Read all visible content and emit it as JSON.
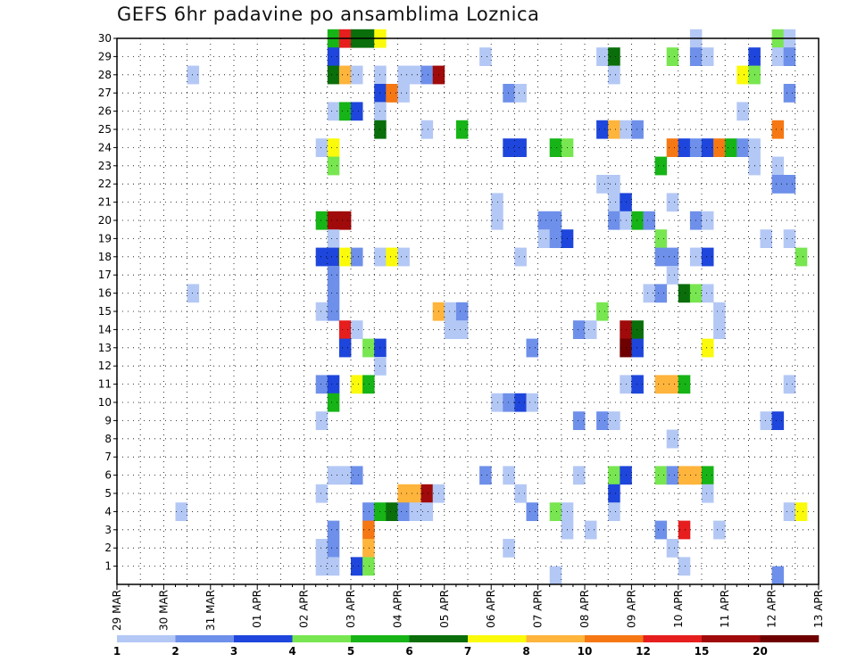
{
  "title": "GEFS 6hr padavine po ansamblima Loznica",
  "chart_data": {
    "type": "heatmap",
    "title": "GEFS 6hr padavine po ansamblima Loznica",
    "x_ticks": [
      "29 MAR",
      "30 MAR",
      "31 MAR",
      "01 APR",
      "02 APR",
      "03 APR",
      "04 APR",
      "05 APR",
      "06 APR",
      "07 APR",
      "08 APR",
      "09 APR",
      "10 APR",
      "11 APR",
      "12 APR",
      "13 APR"
    ],
    "y_ticks": [
      1,
      2,
      3,
      4,
      5,
      6,
      7,
      8,
      9,
      10,
      11,
      12,
      13,
      14,
      15,
      16,
      17,
      18,
      19,
      20,
      21,
      22,
      23,
      24,
      25,
      26,
      27,
      28,
      29,
      30
    ],
    "xlim_days": [
      0,
      15
    ],
    "ylim": [
      0,
      30
    ],
    "grid": true,
    "colorbar": {
      "ticks": [
        "1",
        "2",
        "3",
        "4",
        "5",
        "6",
        "7",
        "8",
        "10",
        "12",
        "15",
        "20"
      ],
      "colors": [
        "#b4c8f5",
        "#6e90ea",
        "#1e46dc",
        "#78e650",
        "#16b416",
        "#0a6e0a",
        "#fafa0a",
        "#ffb43c",
        "#f57814",
        "#e61e1e",
        "#a00a0a",
        "#6e0000"
      ]
    },
    "cells_note": "each cell: [day offset from 29 MAR 00Z, ensemble member, colour class index into colorbar.colors]",
    "cells": [
      [
        4.5,
        30,
        4
      ],
      [
        4.75,
        30,
        9
      ],
      [
        5.0,
        30,
        5
      ],
      [
        5.25,
        30,
        5
      ],
      [
        5.5,
        30,
        6
      ],
      [
        12.25,
        30,
        0
      ],
      [
        14.0,
        30,
        3
      ],
      [
        14.25,
        30,
        0
      ],
      [
        4.5,
        29,
        2
      ],
      [
        7.75,
        29,
        0
      ],
      [
        10.25,
        29,
        0
      ],
      [
        10.5,
        29,
        5
      ],
      [
        11.75,
        29,
        3
      ],
      [
        12.25,
        29,
        1
      ],
      [
        12.5,
        29,
        0
      ],
      [
        13.5,
        29,
        2
      ],
      [
        14.0,
        29,
        0
      ],
      [
        14.25,
        29,
        1
      ],
      [
        1.5,
        28,
        0
      ],
      [
        4.5,
        28,
        5
      ],
      [
        4.75,
        28,
        7
      ],
      [
        5.0,
        28,
        0
      ],
      [
        5.5,
        28,
        0
      ],
      [
        6.0,
        28,
        0
      ],
      [
        6.25,
        28,
        0
      ],
      [
        6.5,
        28,
        1
      ],
      [
        6.75,
        28,
        10
      ],
      [
        10.5,
        28,
        0
      ],
      [
        13.25,
        28,
        6
      ],
      [
        13.5,
        28,
        3
      ],
      [
        5.5,
        27,
        2
      ],
      [
        5.75,
        27,
        8
      ],
      [
        6.0,
        27,
        0
      ],
      [
        8.25,
        27,
        1
      ],
      [
        8.5,
        27,
        0
      ],
      [
        14.25,
        27,
        1
      ],
      [
        4.5,
        26,
        0
      ],
      [
        4.75,
        26,
        4
      ],
      [
        5.0,
        26,
        2
      ],
      [
        5.5,
        26,
        0
      ],
      [
        13.25,
        26,
        0
      ],
      [
        5.5,
        25,
        5
      ],
      [
        6.5,
        25,
        0
      ],
      [
        7.25,
        25,
        4
      ],
      [
        10.25,
        25,
        2
      ],
      [
        10.5,
        25,
        7
      ],
      [
        10.75,
        25,
        0
      ],
      [
        11.0,
        25,
        1
      ],
      [
        14.0,
        25,
        8
      ],
      [
        4.25,
        24,
        0
      ],
      [
        4.5,
        24,
        6
      ],
      [
        8.25,
        24,
        2
      ],
      [
        8.5,
        24,
        2
      ],
      [
        9.25,
        24,
        4
      ],
      [
        9.5,
        24,
        3
      ],
      [
        11.75,
        24,
        8
      ],
      [
        12.0,
        24,
        2
      ],
      [
        12.25,
        24,
        1
      ],
      [
        12.5,
        24,
        2
      ],
      [
        12.75,
        24,
        8
      ],
      [
        13.0,
        24,
        4
      ],
      [
        13.25,
        24,
        1
      ],
      [
        13.5,
        24,
        0
      ],
      [
        4.5,
        23,
        3
      ],
      [
        11.5,
        23,
        4
      ],
      [
        13.5,
        23,
        0
      ],
      [
        14.0,
        23,
        0
      ],
      [
        10.25,
        22,
        0
      ],
      [
        10.5,
        22,
        0
      ],
      [
        14.0,
        22,
        1
      ],
      [
        14.25,
        22,
        1
      ],
      [
        8.0,
        21,
        0
      ],
      [
        10.5,
        21,
        0
      ],
      [
        10.75,
        21,
        2
      ],
      [
        11.75,
        21,
        0
      ],
      [
        4.25,
        20,
        4
      ],
      [
        4.5,
        20,
        10
      ],
      [
        4.75,
        20,
        10
      ],
      [
        8.0,
        20,
        0
      ],
      [
        9.0,
        20,
        1
      ],
      [
        9.25,
        20,
        1
      ],
      [
        10.5,
        20,
        1
      ],
      [
        10.75,
        20,
        0
      ],
      [
        11.0,
        20,
        4
      ],
      [
        11.25,
        20,
        1
      ],
      [
        12.25,
        20,
        1
      ],
      [
        12.5,
        20,
        0
      ],
      [
        4.5,
        19,
        0
      ],
      [
        9.0,
        19,
        0
      ],
      [
        9.25,
        19,
        1
      ],
      [
        9.5,
        19,
        2
      ],
      [
        11.5,
        19,
        3
      ],
      [
        13.75,
        19,
        0
      ],
      [
        14.25,
        19,
        0
      ],
      [
        4.25,
        18,
        2
      ],
      [
        4.5,
        18,
        2
      ],
      [
        4.75,
        18,
        6
      ],
      [
        5.0,
        18,
        1
      ],
      [
        5.5,
        18,
        0
      ],
      [
        5.75,
        18,
        6
      ],
      [
        6.0,
        18,
        0
      ],
      [
        8.5,
        18,
        0
      ],
      [
        11.5,
        18,
        1
      ],
      [
        11.75,
        18,
        1
      ],
      [
        12.25,
        18,
        0
      ],
      [
        12.5,
        18,
        2
      ],
      [
        14.5,
        18,
        3
      ],
      [
        4.5,
        17,
        1
      ],
      [
        11.75,
        17,
        0
      ],
      [
        1.5,
        16,
        0
      ],
      [
        4.5,
        16,
        1
      ],
      [
        11.25,
        16,
        0
      ],
      [
        11.5,
        16,
        1
      ],
      [
        12.0,
        16,
        5
      ],
      [
        12.25,
        16,
        3
      ],
      [
        12.5,
        16,
        0
      ],
      [
        4.25,
        15,
        0
      ],
      [
        4.5,
        15,
        1
      ],
      [
        6.75,
        15,
        7
      ],
      [
        7.0,
        15,
        0
      ],
      [
        7.25,
        15,
        1
      ],
      [
        10.25,
        15,
        3
      ],
      [
        12.75,
        15,
        0
      ],
      [
        4.75,
        14,
        9
      ],
      [
        5.0,
        14,
        0
      ],
      [
        7.0,
        14,
        0
      ],
      [
        7.25,
        14,
        0
      ],
      [
        9.75,
        14,
        1
      ],
      [
        10.0,
        14,
        0
      ],
      [
        10.75,
        14,
        10
      ],
      [
        11.0,
        14,
        5
      ],
      [
        12.75,
        14,
        0
      ],
      [
        4.75,
        13,
        2
      ],
      [
        5.25,
        13,
        3
      ],
      [
        5.5,
        13,
        2
      ],
      [
        8.75,
        13,
        1
      ],
      [
        10.75,
        13,
        11
      ],
      [
        11.0,
        13,
        2
      ],
      [
        12.5,
        13,
        6
      ],
      [
        5.5,
        12,
        0
      ],
      [
        4.25,
        11,
        1
      ],
      [
        4.5,
        11,
        2
      ],
      [
        5.0,
        11,
        6
      ],
      [
        5.25,
        11,
        4
      ],
      [
        10.75,
        11,
        0
      ],
      [
        11.0,
        11,
        2
      ],
      [
        11.5,
        11,
        7
      ],
      [
        11.75,
        11,
        7
      ],
      [
        12.0,
        11,
        4
      ],
      [
        14.25,
        11,
        0
      ],
      [
        4.5,
        10,
        4
      ],
      [
        8.0,
        10,
        0
      ],
      [
        8.25,
        10,
        1
      ],
      [
        8.5,
        10,
        2
      ],
      [
        8.75,
        10,
        0
      ],
      [
        4.25,
        9,
        0
      ],
      [
        9.75,
        9,
        1
      ],
      [
        10.25,
        9,
        1
      ],
      [
        10.5,
        9,
        0
      ],
      [
        13.75,
        9,
        0
      ],
      [
        14.0,
        9,
        2
      ],
      [
        11.75,
        8,
        0
      ],
      [
        4.5,
        6,
        0
      ],
      [
        4.75,
        6,
        0
      ],
      [
        5.0,
        6,
        1
      ],
      [
        7.75,
        6,
        1
      ],
      [
        8.25,
        6,
        0
      ],
      [
        9.75,
        6,
        0
      ],
      [
        10.5,
        6,
        3
      ],
      [
        10.75,
        6,
        2
      ],
      [
        11.5,
        6,
        3
      ],
      [
        11.75,
        6,
        1
      ],
      [
        12.0,
        6,
        7
      ],
      [
        12.25,
        6,
        7
      ],
      [
        12.5,
        6,
        4
      ],
      [
        4.25,
        5,
        0
      ],
      [
        6.0,
        5,
        7
      ],
      [
        6.25,
        5,
        7
      ],
      [
        6.5,
        5,
        10
      ],
      [
        6.75,
        5,
        0
      ],
      [
        8.5,
        5,
        0
      ],
      [
        10.5,
        5,
        2
      ],
      [
        12.5,
        5,
        0
      ],
      [
        1.25,
        4,
        0
      ],
      [
        5.25,
        4,
        1
      ],
      [
        5.5,
        4,
        4
      ],
      [
        5.75,
        4,
        5
      ],
      [
        6.0,
        4,
        1
      ],
      [
        6.25,
        4,
        0
      ],
      [
        6.5,
        4,
        0
      ],
      [
        8.75,
        4,
        1
      ],
      [
        9.25,
        4,
        3
      ],
      [
        9.5,
        4,
        0
      ],
      [
        10.5,
        4,
        0
      ],
      [
        14.25,
        4,
        0
      ],
      [
        14.5,
        4,
        6
      ],
      [
        4.5,
        3,
        1
      ],
      [
        5.25,
        3,
        8
      ],
      [
        9.5,
        3,
        0
      ],
      [
        10.0,
        3,
        0
      ],
      [
        11.5,
        3,
        1
      ],
      [
        12.0,
        3,
        9
      ],
      [
        12.75,
        3,
        0
      ],
      [
        4.25,
        2,
        0
      ],
      [
        4.5,
        2,
        1
      ],
      [
        5.25,
        2,
        7
      ],
      [
        8.25,
        2,
        0
      ],
      [
        11.75,
        2,
        0
      ],
      [
        4.25,
        1,
        0
      ],
      [
        4.5,
        1,
        0
      ],
      [
        5.0,
        1,
        2
      ],
      [
        5.25,
        1,
        3
      ],
      [
        9.25,
        0.5,
        0
      ],
      [
        12.0,
        1,
        0
      ],
      [
        14.0,
        0.5,
        1
      ]
    ]
  }
}
